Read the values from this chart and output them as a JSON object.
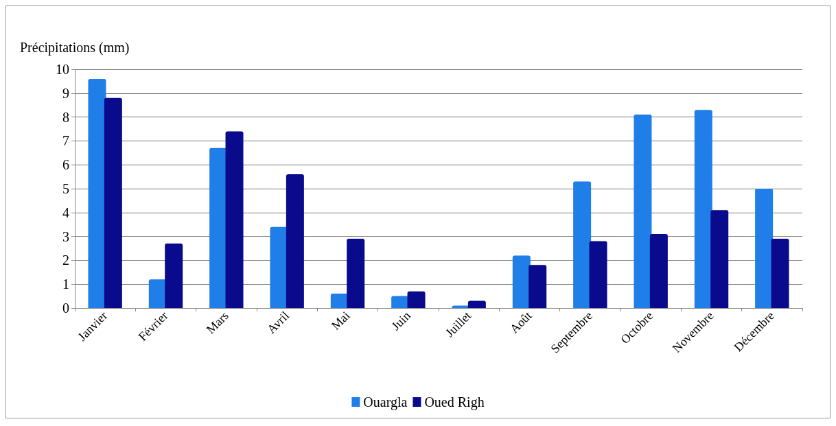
{
  "chart_data": {
    "type": "bar",
    "ylabel": "Précipitations (mm)",
    "categories": [
      "Janvier",
      "Février",
      "Mars",
      "Avril",
      "Mai",
      "Juin",
      "Juillet",
      "Août",
      "Septembre",
      "Octobre",
      "Novembre",
      "Décembre"
    ],
    "series": [
      {
        "name": "Ouargla",
        "color": "#1f7ee8",
        "values": [
          9.6,
          1.2,
          6.7,
          3.4,
          0.6,
          0.5,
          0.1,
          2.2,
          5.3,
          8.1,
          8.3,
          5.0
        ]
      },
      {
        "name": "Oued Righ",
        "color": "#0a0a8c",
        "values": [
          8.8,
          2.7,
          7.4,
          5.6,
          2.9,
          0.7,
          0.3,
          1.8,
          2.8,
          3.1,
          4.1,
          2.9
        ]
      }
    ],
    "ylim": [
      0,
      10
    ],
    "yticks": [
      0,
      1,
      2,
      3,
      4,
      5,
      6,
      7,
      8,
      9,
      10
    ],
    "grid": "y",
    "legend": "bottom"
  }
}
